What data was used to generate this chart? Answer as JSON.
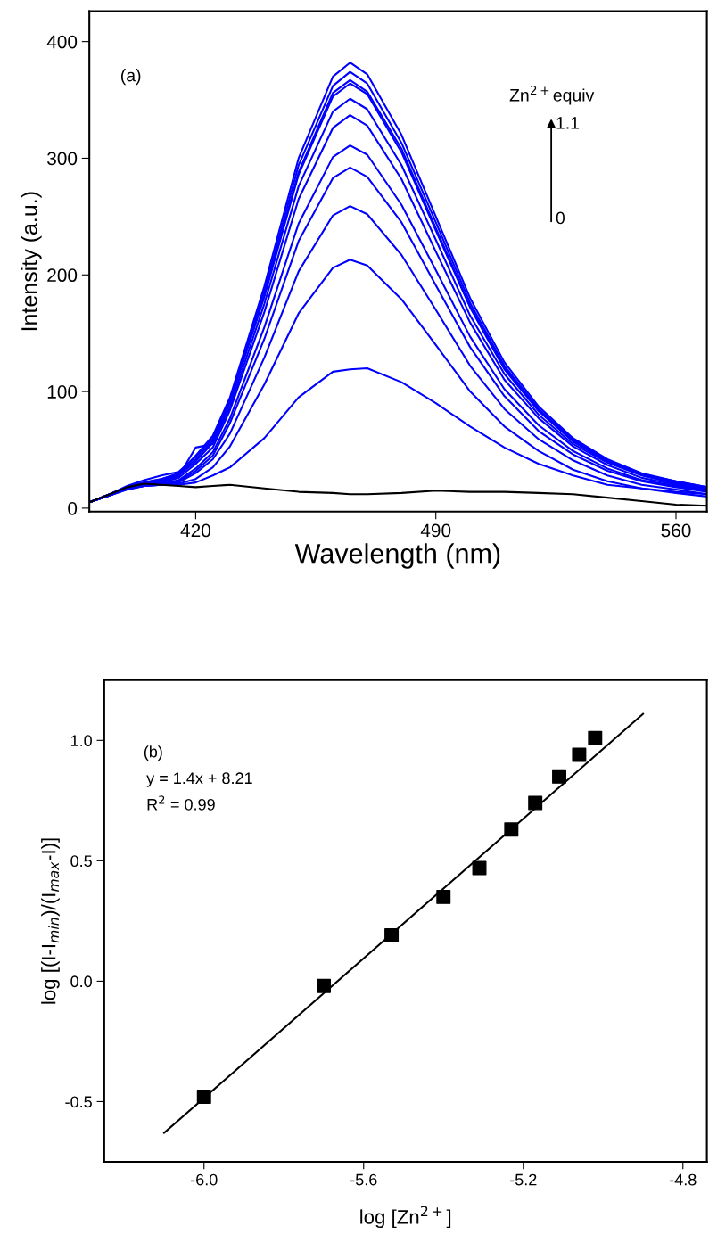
{
  "chart_data": [
    {
      "type": "line",
      "xlabel": "Wavelength (nm)",
      "ylabel": "Intensity (a.u.)",
      "xlim": [
        389,
        569
      ],
      "ylim": [
        -3,
        426
      ],
      "xticks": [
        420,
        490,
        560
      ],
      "yticks": [
        0,
        100,
        200,
        300,
        400
      ],
      "grid": false,
      "legend": false,
      "marker": "none",
      "line_style": "solid",
      "x": [
        389,
        395,
        400,
        405,
        410,
        415,
        420,
        425,
        430,
        440,
        450,
        460,
        465,
        470,
        480,
        490,
        500,
        510,
        520,
        530,
        540,
        550,
        560,
        569
      ],
      "annotations": [
        "(a)",
        "Zn$^{2+}$equiv",
        "1.1",
        "0"
      ],
      "series": [
        {
          "color": "#0000ff",
          "values": [
            5,
            12,
            18,
            22,
            25,
            30,
            45,
            62,
            95,
            190,
            300,
            370,
            382,
            372,
            320,
            250,
            180,
            125,
            87,
            60,
            42,
            30,
            23,
            18
          ]
        },
        {
          "color": "#0000ff",
          "values": [
            5,
            12,
            19,
            24,
            28,
            31,
            44,
            60,
            93,
            186,
            294,
            362,
            374,
            364,
            313,
            245,
            176,
            122,
            85,
            59,
            41,
            29,
            23,
            18
          ]
        },
        {
          "color": "#0000ff",
          "values": [
            5,
            12,
            18,
            22,
            25,
            29,
            42,
            58,
            91,
            183,
            288,
            356,
            367,
            357,
            308,
            240,
            173,
            120,
            84,
            58,
            40,
            29,
            22,
            17
          ]
        },
        {
          "color": "#0000ff",
          "values": [
            5,
            12,
            18,
            21,
            24,
            28,
            40,
            56,
            91,
            181,
            286,
            353,
            364,
            355,
            305,
            238,
            172,
            119,
            83,
            57,
            40,
            29,
            22,
            17
          ]
        },
        {
          "color": "#0000ff",
          "values": [
            5,
            12,
            18,
            21,
            23,
            27,
            52,
            55,
            87,
            175,
            276,
            340,
            351,
            342,
            294,
            230,
            165,
            115,
            80,
            55,
            39,
            28,
            21,
            17
          ]
        },
        {
          "color": "#0000ff",
          "values": [
            5,
            12,
            18,
            20,
            22,
            26,
            38,
            52,
            84,
            168,
            265,
            326,
            337,
            328,
            282,
            220,
            159,
            110,
            77,
            53,
            37,
            26,
            20,
            16
          ]
        },
        {
          "color": "#0000ff",
          "values": [
            5,
            11,
            17,
            20,
            21,
            24,
            34,
            48,
            77,
            155,
            244,
            301,
            311,
            303,
            260,
            204,
            147,
            102,
            71,
            49,
            34,
            24,
            19,
            15
          ]
        },
        {
          "color": "#0000ff",
          "values": [
            5,
            11,
            17,
            20,
            21,
            23,
            32,
            45,
            73,
            145,
            229,
            283,
            292,
            284,
            245,
            191,
            138,
            96,
            66,
            46,
            32,
            23,
            18,
            14
          ]
        },
        {
          "color": "#0000ff",
          "values": [
            5,
            11,
            17,
            19,
            20,
            22,
            30,
            42,
            64,
            129,
            203,
            251,
            259,
            252,
            217,
            170,
            122,
            85,
            59,
            41,
            28,
            20,
            16,
            12
          ]
        },
        {
          "color": "#0000ff",
          "values": [
            5,
            11,
            16,
            19,
            20,
            21,
            25,
            35,
            53,
            106,
            167,
            206,
            213,
            208,
            179,
            140,
            100,
            70,
            49,
            33,
            23,
            17,
            13,
            10
          ]
        },
        {
          "color": "#0000ff",
          "values": [
            5,
            11,
            16,
            19,
            20,
            20,
            22,
            28,
            35,
            60,
            95,
            117,
            119,
            120,
            108,
            90,
            70,
            52,
            38,
            28,
            20,
            17,
            14,
            12
          ]
        },
        {
          "color": "#000000",
          "values": [
            5,
            12,
            18,
            21,
            20,
            19,
            18,
            19,
            20,
            17,
            14,
            13,
            12,
            12,
            13,
            15,
            14,
            14,
            13,
            12,
            9,
            6,
            3,
            2
          ]
        }
      ]
    },
    {
      "type": "scatter",
      "xlabel": "log [Zn$^{2+}$]",
      "ylabel": "log [(I-I$_{min}$)/(I$_{max}$-I)]",
      "xlim": [
        -6.25,
        -4.74
      ],
      "ylim": [
        -0.75,
        1.25
      ],
      "xticks": [
        {
          "value": -6.0,
          "label": "-6.0"
        },
        {
          "value": -5.6,
          "label": "-5.6"
        },
        {
          "value": -5.2,
          "label": "-5.2"
        },
        {
          "value": -4.8,
          "label": "-4.8"
        }
      ],
      "yticks": [
        {
          "value": -0.5,
          "label": "-0.5"
        },
        {
          "value": 0.0,
          "label": "0.0"
        },
        {
          "value": 0.5,
          "label": "0.5"
        },
        {
          "value": 1.0,
          "label": "1.0"
        }
      ],
      "grid": false,
      "legend": false,
      "annotations": [
        "(b)",
        "y = 1.4x + 8.21",
        "R$^{2}$ = 0.99"
      ],
      "series": [
        {
          "type": "scatter",
          "color": "#000000",
          "marker": "square",
          "x": [
            -6.0,
            -5.7,
            -5.53,
            -5.4,
            -5.31,
            -5.23,
            -5.17,
            -5.11,
            -5.06,
            -5.02
          ],
          "values": [
            -0.48,
            -0.02,
            0.19,
            0.35,
            0.47,
            0.63,
            0.74,
            0.85,
            0.94,
            1.01
          ]
        },
        {
          "type": "line",
          "color": "#000000",
          "marker": "none",
          "line_style": "solid",
          "x": [
            -6.1,
            -4.9
          ],
          "values": [
            -0.63,
            1.11
          ]
        }
      ]
    }
  ]
}
